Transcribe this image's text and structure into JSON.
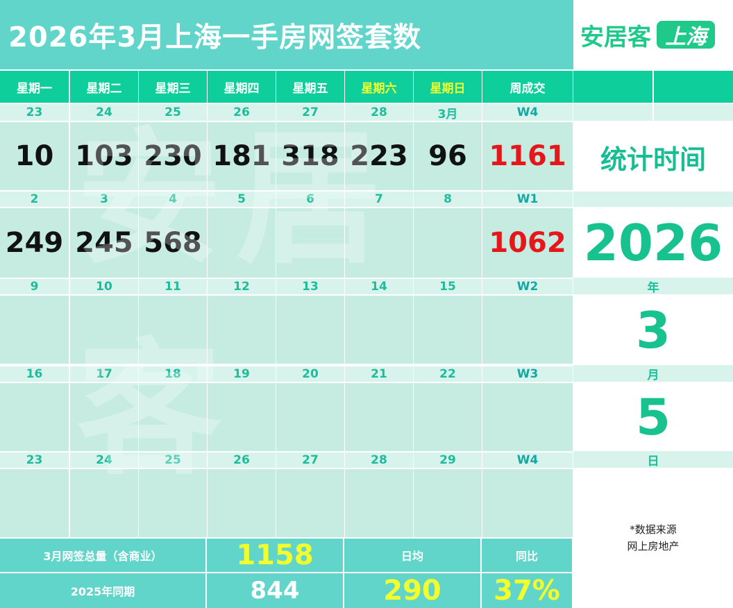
{
  "title": "2026年3月上海一手房网签套数",
  "logo": {
    "main": "安居客",
    "badge": "上海"
  },
  "watermark_text": "安居客",
  "weekday_headers": [
    "星期一",
    "星期二",
    "星期三",
    "星期四",
    "星期五",
    "星期六",
    "星期日",
    "周成交"
  ],
  "weeks": [
    {
      "dates": [
        "23",
        "24",
        "25",
        "26",
        "27",
        "28",
        "3月"
      ],
      "week_label": "W4",
      "values": [
        "10",
        "103",
        "230",
        "181",
        "318",
        "223",
        "96"
      ],
      "week_total": "1161"
    },
    {
      "dates": [
        "2",
        "3",
        "4",
        "5",
        "6",
        "7",
        "8"
      ],
      "week_label": "W1",
      "values": [
        "249",
        "245",
        "568",
        "",
        "",
        "",
        ""
      ],
      "week_total": "1062"
    },
    {
      "dates": [
        "9",
        "10",
        "11",
        "12",
        "13",
        "14",
        "15"
      ],
      "week_label": "W2",
      "values": [
        "",
        "",
        "",
        "",
        "",
        "",
        ""
      ],
      "week_total": ""
    },
    {
      "dates": [
        "16",
        "17",
        "18",
        "19",
        "20",
        "21",
        "22"
      ],
      "week_label": "W3",
      "values": [
        "",
        "",
        "",
        "",
        "",
        "",
        ""
      ],
      "week_total": ""
    },
    {
      "dates": [
        "23",
        "24",
        "25",
        "26",
        "27",
        "28",
        "29"
      ],
      "week_label": "W4",
      "values": [
        "",
        "",
        "",
        "",
        "",
        "",
        ""
      ],
      "week_total": ""
    }
  ],
  "stat_time": {
    "label": "统计时间",
    "year": "2026",
    "year_unit": "年",
    "month": "3",
    "month_unit": "月",
    "day": "5",
    "day_unit": "日"
  },
  "source": {
    "line1": "*数据来源",
    "line2": "网上房地产"
  },
  "summary": {
    "total_label": "3月网签总量（含商业）",
    "total_value": "1158",
    "avg_label": "日均",
    "yoy_label": "同比",
    "last_year_label": "2025年同期",
    "last_year_value": "844",
    "avg_value": "290",
    "yoy_value": "37%"
  },
  "colors": {
    "title_bg": "#62d5cb",
    "header_bg": "#0ecf9b",
    "weekend_header": "#f2ff2c",
    "cell_bg": "#c6ece2",
    "strip_bg": "#d7f3ec",
    "week_total": "#e5171a",
    "highlight": "#f3ff2d",
    "brand_green": "#1ec98a"
  }
}
